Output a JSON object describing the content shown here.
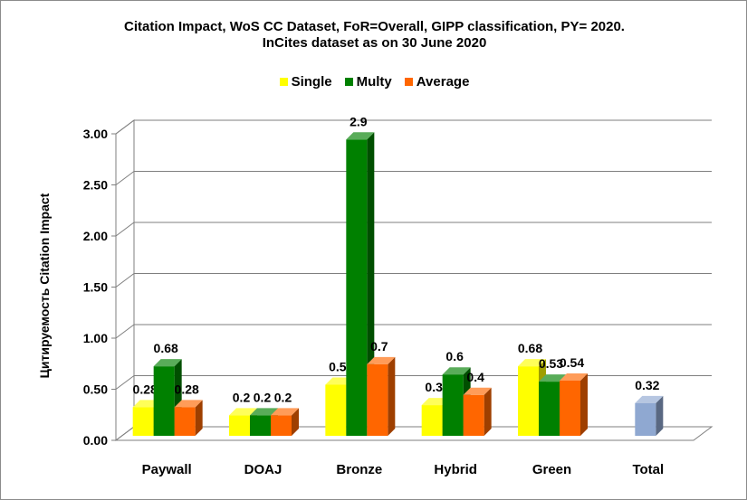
{
  "chart_data": {
    "type": "bar",
    "title": "Citation Impact, WoS CC Dataset, FoR=Overall, GIPP classification, PY= 2020.",
    "subtitle": "InCites dataset as on 30 June 2020",
    "ylabel": "Цитируемость Citation Impact",
    "xlabel": "",
    "ylim": [
      0,
      3
    ],
    "yticks": [
      "0.00",
      "0.50",
      "1.00",
      "1.50",
      "2.00",
      "2.50",
      "3.00"
    ],
    "grid": true,
    "legend_position": "top",
    "categories": [
      "Paywall",
      "DOAJ",
      "Bronze",
      "Hybrid",
      "Green",
      "Total"
    ],
    "series": [
      {
        "name": "Single",
        "color": "#ffff00",
        "values": [
          0.28,
          0.2,
          0.5,
          0.3,
          0.68,
          null
        ],
        "labels": [
          "0.28",
          "0.2",
          "0.5",
          "0.3",
          "0.68",
          ""
        ]
      },
      {
        "name": "Multy",
        "color": "#008000",
        "values": [
          0.68,
          0.2,
          2.9,
          0.6,
          0.53,
          null
        ],
        "labels": [
          "0.68",
          "0.2",
          "2.9",
          "0.6",
          "0.53",
          ""
        ]
      },
      {
        "name": "Average",
        "color": "#ff6600",
        "values": [
          0.28,
          0.2,
          0.7,
          0.4,
          0.54,
          null
        ],
        "labels": [
          "0.28",
          "0.2",
          "0.7",
          "0.4",
          "0.54",
          ""
        ]
      }
    ],
    "extra_bars": [
      {
        "category": "Total",
        "value": 0.32,
        "label": "0.32",
        "color": "#8fa8d1"
      }
    ]
  }
}
